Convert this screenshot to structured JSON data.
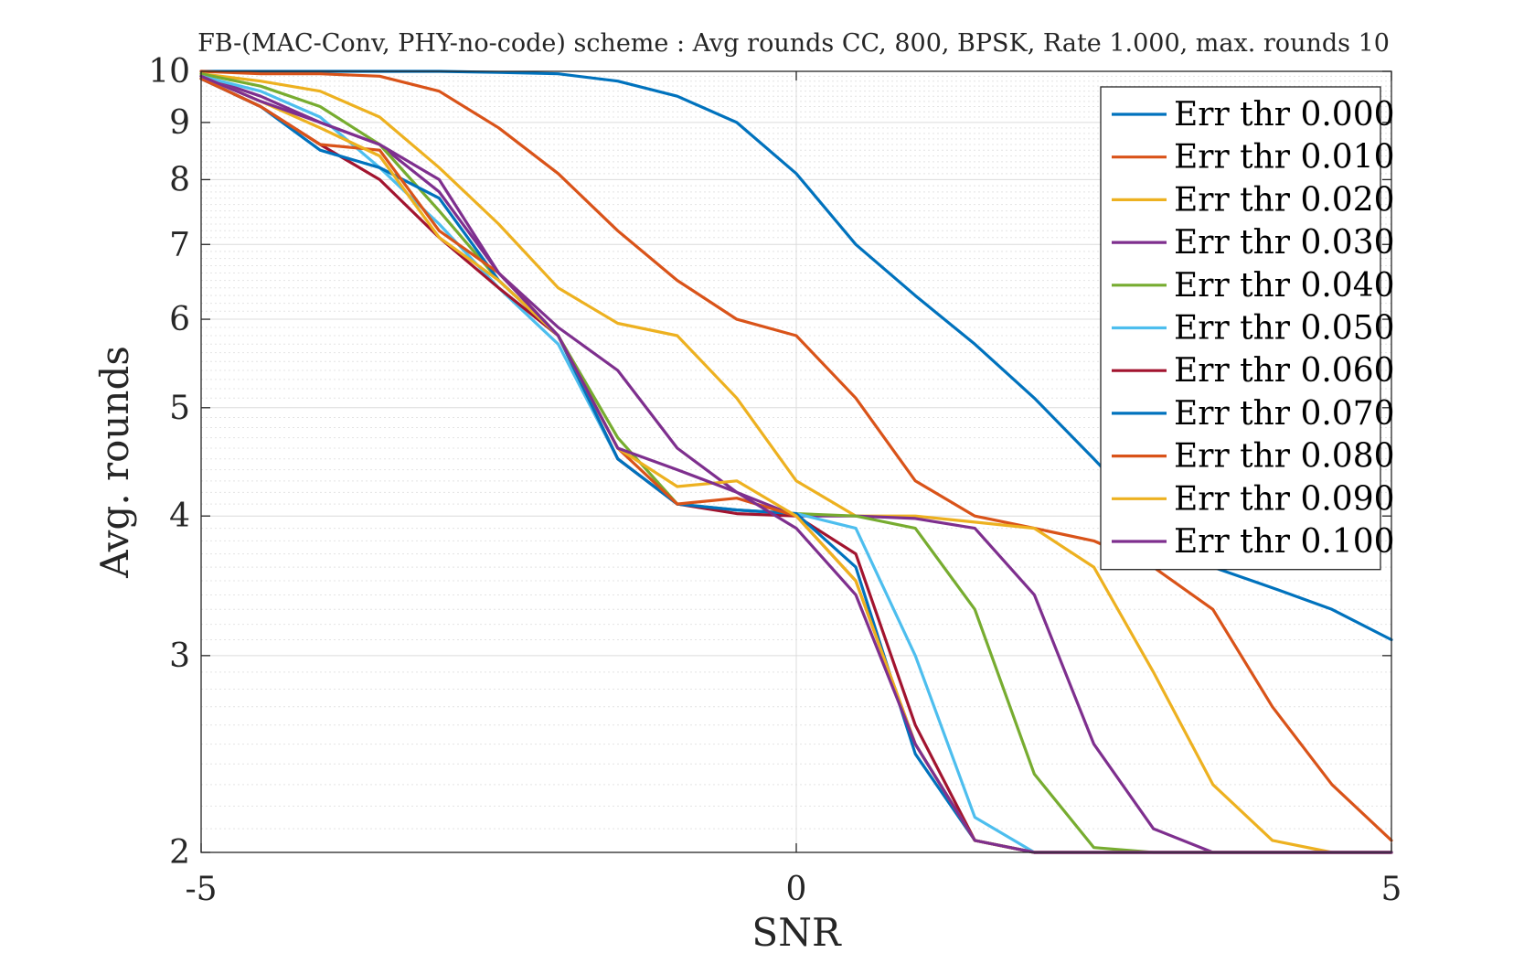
{
  "chart_data": {
    "type": "line",
    "title": "FB-(MAC-Conv, PHY-no-code) scheme : Avg rounds CC, 800, BPSK, Rate 1.000, max. rounds 10",
    "xlabel": "SNR",
    "ylabel": "Avg. rounds",
    "xlim": [
      -5,
      5
    ],
    "ylim": [
      2,
      10
    ],
    "yscale": "log",
    "xticks": [
      -5,
      0,
      5
    ],
    "xtick_labels": [
      "-5",
      "0",
      "5"
    ],
    "yticks": [
      2,
      3,
      4,
      5,
      6,
      7,
      8,
      9,
      10
    ],
    "ytick_labels": [
      "2",
      "3",
      "4",
      "5",
      "6",
      "7",
      "8",
      "9",
      "10"
    ],
    "grid": true,
    "legend_position": "top-right",
    "series": [
      {
        "name": "Err thr 0.000",
        "color": "#0072BD",
        "x": [
          -5,
          -4.5,
          -4,
          -3.5,
          -3,
          -2.5,
          -2,
          -1.5,
          -1,
          -0.5,
          0,
          0.5,
          1,
          1.5,
          2,
          2.5,
          3,
          3.5,
          4,
          4.5,
          5
        ],
        "y": [
          10,
          10,
          10,
          10,
          10,
          9.98,
          9.95,
          9.8,
          9.5,
          9.0,
          8.1,
          7.0,
          6.3,
          5.7,
          5.1,
          4.5,
          3.95,
          3.6,
          3.45,
          3.3,
          3.1
        ]
      },
      {
        "name": "Err thr 0.010",
        "color": "#D95319",
        "x": [
          -5,
          -4.5,
          -4,
          -3.5,
          -3,
          -2.5,
          -2,
          -1.5,
          -1,
          -0.5,
          0,
          0.5,
          1,
          1.5,
          2,
          2.5,
          3,
          3.5,
          4,
          4.5,
          5
        ],
        "y": [
          10,
          9.95,
          9.95,
          9.9,
          9.6,
          8.9,
          8.1,
          7.2,
          6.5,
          6.0,
          5.8,
          5.1,
          4.3,
          4.0,
          3.9,
          3.8,
          3.6,
          3.3,
          2.7,
          2.3,
          2.05
        ]
      },
      {
        "name": "Err thr 0.020",
        "color": "#EDB120",
        "x": [
          -5,
          -4.5,
          -4,
          -3.5,
          -3,
          -2.5,
          -2,
          -1.5,
          -1,
          -0.5,
          0,
          0.5,
          1,
          1.5,
          2,
          2.5,
          3,
          3.5,
          4,
          4.5,
          5
        ],
        "y": [
          9.95,
          9.8,
          9.6,
          9.1,
          8.2,
          7.3,
          6.4,
          5.95,
          5.8,
          5.1,
          4.3,
          4.0,
          4.0,
          3.95,
          3.9,
          3.6,
          2.9,
          2.3,
          2.05,
          2.0,
          2.0
        ]
      },
      {
        "name": "Err thr 0.030",
        "color": "#7E2F8E",
        "x": [
          -5,
          -4.5,
          -4,
          -3.5,
          -3,
          -2.5,
          -2,
          -1.5,
          -1,
          -0.5,
          0,
          0.5,
          1,
          1.5,
          2,
          2.5,
          3,
          3.5,
          4,
          4.5,
          5
        ],
        "y": [
          9.9,
          9.5,
          9.0,
          8.6,
          7.8,
          6.6,
          5.9,
          5.4,
          4.6,
          4.2,
          4.0,
          4.0,
          3.98,
          3.9,
          3.4,
          2.5,
          2.1,
          2.0,
          2.0,
          2.0,
          2.0
        ]
      },
      {
        "name": "Err thr 0.040",
        "color": "#77AC30",
        "x": [
          -5,
          -4.5,
          -4,
          -3.5,
          -3,
          -2.5,
          -2,
          -1.5,
          -1,
          -0.5,
          0,
          0.5,
          1,
          1.5,
          2,
          2.5,
          3,
          3.5,
          4,
          4.5,
          5
        ],
        "y": [
          9.95,
          9.7,
          9.3,
          8.6,
          7.5,
          6.5,
          5.8,
          4.7,
          4.1,
          4.05,
          4.02,
          4.0,
          3.9,
          3.3,
          2.35,
          2.02,
          2.0,
          2.0,
          2.0,
          2.0,
          2.0
        ]
      },
      {
        "name": "Err thr 0.050",
        "color": "#4DBEEE",
        "x": [
          -5,
          -4.5,
          -4,
          -3.5,
          -3,
          -2.5,
          -2,
          -1.5,
          -1,
          -0.5,
          0,
          0.5,
          1,
          1.5,
          2,
          2.5,
          3,
          3.5,
          4,
          4.5,
          5
        ],
        "y": [
          9.9,
          9.6,
          9.1,
          8.2,
          7.3,
          6.4,
          5.7,
          4.5,
          4.1,
          4.05,
          4.02,
          3.9,
          3.0,
          2.15,
          2.0,
          2.0,
          2.0,
          2.0,
          2.0,
          2.0,
          2.0
        ]
      },
      {
        "name": "Err thr 0.060",
        "color": "#A2142F",
        "x": [
          -5,
          -4.5,
          -4,
          -3.5,
          -3,
          -2.5,
          -2,
          -1.5,
          -1,
          -0.5,
          0,
          0.5,
          1,
          1.5,
          2,
          2.5,
          3,
          3.5,
          4,
          4.5,
          5
        ],
        "y": [
          9.85,
          9.3,
          8.6,
          8.0,
          7.1,
          6.4,
          5.8,
          4.5,
          4.1,
          4.02,
          4.0,
          3.7,
          2.6,
          2.05,
          2.0,
          2.0,
          2.0,
          2.0,
          2.0,
          2.0,
          2.0
        ]
      },
      {
        "name": "Err thr 0.070",
        "color": "#0072BD",
        "x": [
          -5,
          -4.5,
          -4,
          -3.5,
          -3,
          -2.5,
          -2,
          -1.5,
          -1,
          -0.5,
          0,
          0.5,
          1,
          1.5,
          2,
          2.5,
          3,
          3.5,
          4,
          4.5,
          5
        ],
        "y": [
          9.85,
          9.3,
          8.5,
          8.2,
          7.7,
          6.5,
          5.8,
          4.5,
          4.1,
          4.05,
          4.02,
          3.6,
          2.45,
          2.05,
          2.0,
          2.0,
          2.0,
          2.0,
          2.0,
          2.0,
          2.0
        ]
      },
      {
        "name": "Err thr 0.080",
        "color": "#D95319",
        "x": [
          -5,
          -4.5,
          -4,
          -3.5,
          -3,
          -2.5,
          -2,
          -1.5,
          -1,
          -0.5,
          0,
          0.5,
          1,
          1.5,
          2,
          2.5,
          3,
          3.5,
          4,
          4.5,
          5
        ],
        "y": [
          9.85,
          9.3,
          8.6,
          8.5,
          7.2,
          6.6,
          5.8,
          4.6,
          4.1,
          4.15,
          4.0,
          3.5,
          2.5,
          2.05,
          2.0,
          2.0,
          2.0,
          2.0,
          2.0,
          2.0,
          2.0
        ]
      },
      {
        "name": "Err thr 0.090",
        "color": "#EDB120",
        "x": [
          -5,
          -4.5,
          -4,
          -3.5,
          -3,
          -2.5,
          -2,
          -1.5,
          -1,
          -0.5,
          0,
          0.5,
          1,
          1.5,
          2,
          2.5,
          3,
          3.5,
          4,
          4.5,
          5
        ],
        "y": [
          9.9,
          9.4,
          8.9,
          8.4,
          7.1,
          6.5,
          5.8,
          4.6,
          4.25,
          4.3,
          4.0,
          3.5,
          2.5,
          2.05,
          2.0,
          2.0,
          2.0,
          2.0,
          2.0,
          2.0,
          2.0
        ]
      },
      {
        "name": "Err thr 0.100",
        "color": "#7E2F8E",
        "x": [
          -5,
          -4.5,
          -4,
          -3.5,
          -3,
          -2.5,
          -2,
          -1.5,
          -1,
          -0.5,
          0,
          0.5,
          1,
          1.5,
          2,
          2.5,
          3,
          3.5,
          4,
          4.5,
          5
        ],
        "y": [
          9.9,
          9.4,
          9.0,
          8.6,
          8.0,
          6.6,
          5.8,
          4.6,
          4.4,
          4.2,
          3.9,
          3.4,
          2.5,
          2.05,
          2.0,
          2.0,
          2.0,
          2.0,
          2.0,
          2.0,
          2.0
        ]
      }
    ]
  }
}
